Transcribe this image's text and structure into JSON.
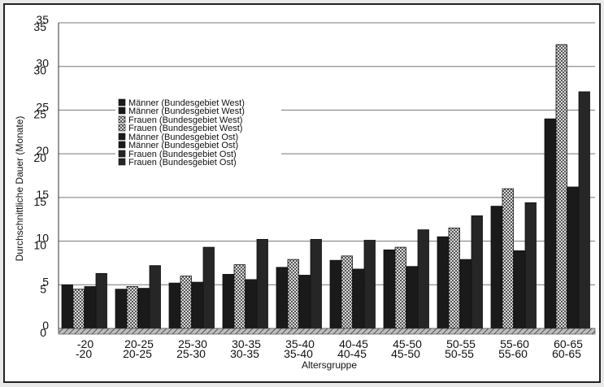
{
  "chart_data": {
    "type": "bar",
    "xlabel": "Altersgruppe",
    "ylabel": "Durchschnittliche Dauer (Monate)",
    "ylim": [
      0,
      35
    ],
    "yticks": [
      0,
      5,
      10,
      15,
      20,
      25,
      30,
      35
    ],
    "grid": true,
    "legend_position": "left",
    "categories": [
      "-20",
      "20-25",
      "25-30",
      "30-35",
      "35-40",
      "40-45",
      "45-50",
      "50-55",
      "55-60",
      "60-65"
    ],
    "series": [
      {
        "name": "Männer (Bundesgebiet West)",
        "color": "#1a1a1a",
        "pattern": "solid",
        "values": [
          5.0,
          4.5,
          5.2,
          6.2,
          7.0,
          7.8,
          9.0,
          10.5,
          14.0,
          24.0
        ]
      },
      {
        "name": "Frauen (Bundesgebiet West)",
        "color": "#9a9a9a",
        "pattern": "check",
        "values": [
          4.5,
          4.8,
          6.0,
          7.3,
          7.9,
          8.3,
          9.3,
          11.5,
          16.0,
          32.5
        ]
      },
      {
        "name": "Männer (Bundesgebiet Ost)",
        "color": "#1a1a1a",
        "pattern": "solid",
        "values": [
          4.8,
          4.6,
          5.3,
          5.6,
          6.1,
          6.8,
          7.1,
          7.9,
          8.9,
          16.2
        ]
      },
      {
        "name": "Frauen (Bundesgebiet Ost)",
        "color": "#262626",
        "pattern": "solid",
        "values": [
          6.3,
          7.2,
          9.3,
          10.2,
          10.2,
          10.1,
          11.3,
          12.9,
          14.4,
          27.1
        ]
      }
    ]
  }
}
